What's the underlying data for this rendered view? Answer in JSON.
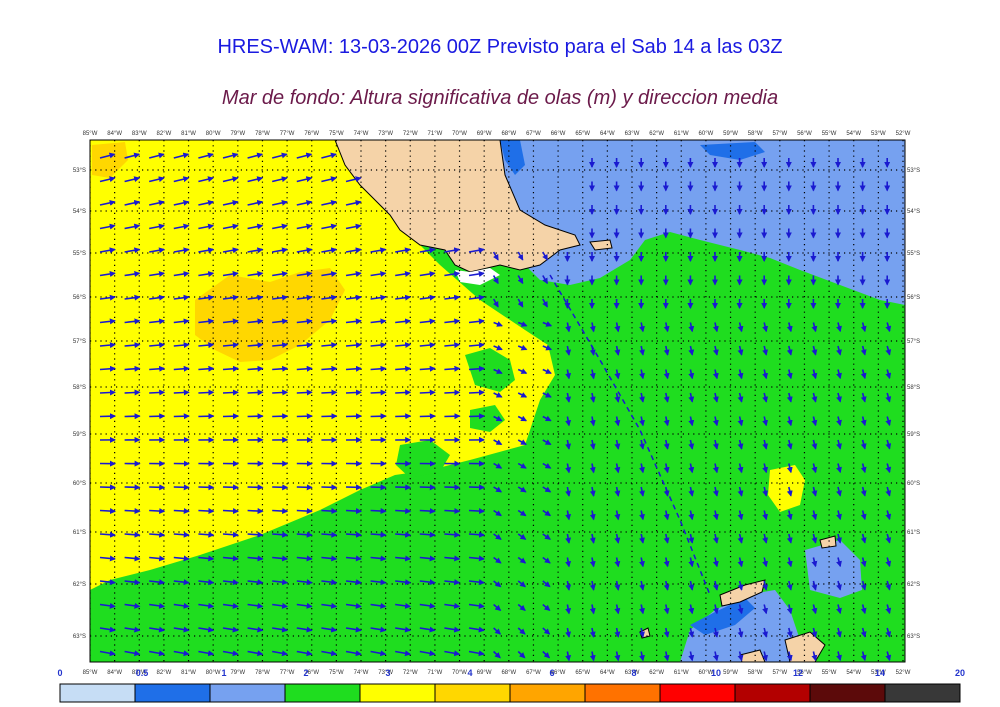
{
  "title": "HRES-WAM: 13-03-2026 00Z Previsto para el Sab 14 a las 03Z",
  "subtitle": "Mar de fondo: Altura significativa de olas (m) y direccion media",
  "lon_labels": [
    "85°W",
    "84°W",
    "83°W",
    "82°W",
    "81°W",
    "80°W",
    "79°W",
    "78°W",
    "77°W",
    "76°W",
    "75°W",
    "74°W",
    "73°W",
    "72°W",
    "71°W",
    "70°W",
    "69°W",
    "68°W",
    "67°W",
    "66°W",
    "65°W",
    "64°W",
    "63°W",
    "62°W",
    "61°W",
    "60°W",
    "59°W",
    "58°W",
    "57°W",
    "56°W",
    "55°W",
    "54°W",
    "53°W",
    "52°W"
  ],
  "lat_labels": [
    "53°S",
    "54°S",
    "55°S",
    "56°S",
    "57°S",
    "58°S",
    "59°S",
    "60°S",
    "61°S",
    "62°S",
    "63°S"
  ],
  "colorbar": {
    "ticks": [
      "0",
      "0.5",
      "1",
      "2",
      "3",
      "4",
      "6",
      "8",
      "10",
      "12",
      "14",
      "20"
    ],
    "colors": [
      "#c6ddf5",
      "#1f6fe8",
      "#76a1f0",
      "#1fdd1f",
      "#ffff00",
      "#ffd700",
      "#ffa500",
      "#ff7200",
      "#ff0000",
      "#b30000",
      "#5c0a0a",
      "#383838"
    ]
  },
  "map_colors": {
    "land": "#f5d3a8",
    "arrow": "#1a1ad0",
    "dotgrid": "#000000"
  }
}
